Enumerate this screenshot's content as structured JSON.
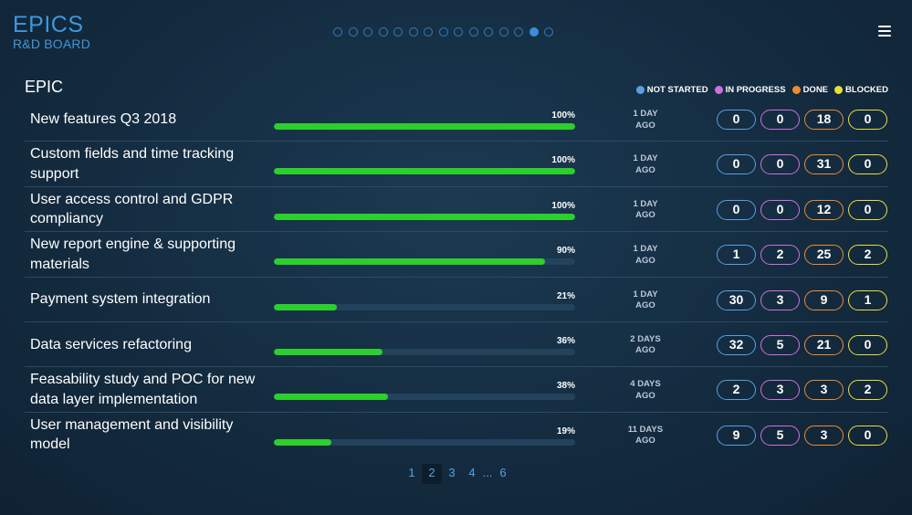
{
  "header": {
    "title": "EPICS",
    "subtitle": "R&D BOARD",
    "slides": 15,
    "active_slide": 14
  },
  "section_title": "EPIC",
  "legend": [
    {
      "label": "NOT STARTED",
      "color": "#5b9fe0"
    },
    {
      "label": "IN PROGRESS",
      "color": "#cf6fe0"
    },
    {
      "label": "DONE",
      "color": "#ee8a30"
    },
    {
      "label": "BLOCKED",
      "color": "#e8df3a"
    }
  ],
  "count_colors": [
    "#5b9fe0",
    "#cf6fe0",
    "#ee8a30",
    "#e8df3a"
  ],
  "epics": [
    {
      "name": "New features Q3 2018",
      "percent": "100%",
      "progress": 1.0,
      "ago_line1": "1 DAY",
      "ago_line2": "AGO",
      "counts": [
        "0",
        "0",
        "18",
        "0"
      ]
    },
    {
      "name": "Custom fields and time tracking support",
      "percent": "100%",
      "progress": 1.0,
      "ago_line1": "1 DAY",
      "ago_line2": "AGO",
      "counts": [
        "0",
        "0",
        "31",
        "0"
      ]
    },
    {
      "name": "User access control and GDPR compliancy",
      "percent": "100%",
      "progress": 1.0,
      "ago_line1": "1 DAY",
      "ago_line2": "AGO",
      "counts": [
        "0",
        "0",
        "12",
        "0"
      ]
    },
    {
      "name": "New report engine & supporting materials",
      "percent": "90%",
      "progress": 0.9,
      "ago_line1": "1 DAY",
      "ago_line2": "AGO",
      "counts": [
        "1",
        "2",
        "25",
        "2"
      ]
    },
    {
      "name": "Payment system integration",
      "percent": "21%",
      "progress": 0.21,
      "ago_line1": "1 DAY",
      "ago_line2": "AGO",
      "counts": [
        "30",
        "3",
        "9",
        "1"
      ]
    },
    {
      "name": "Data services refactoring",
      "percent": "36%",
      "progress": 0.36,
      "ago_line1": "2 DAYS",
      "ago_line2": "AGO",
      "counts": [
        "32",
        "5",
        "21",
        "0"
      ]
    },
    {
      "name": "Feasability study and POC for new data layer implementation",
      "percent": "38%",
      "progress": 0.38,
      "ago_line1": "4 DAYS",
      "ago_line2": "AGO",
      "counts": [
        "2",
        "3",
        "3",
        "2"
      ]
    },
    {
      "name": "User management and visibility model",
      "percent": "19%",
      "progress": 0.19,
      "ago_line1": "11 DAYS",
      "ago_line2": "AGO",
      "counts": [
        "9",
        "5",
        "3",
        "0"
      ]
    }
  ],
  "pagination": {
    "pages": [
      "1",
      "2",
      "3",
      "4",
      "...",
      "6"
    ],
    "active": "2"
  }
}
